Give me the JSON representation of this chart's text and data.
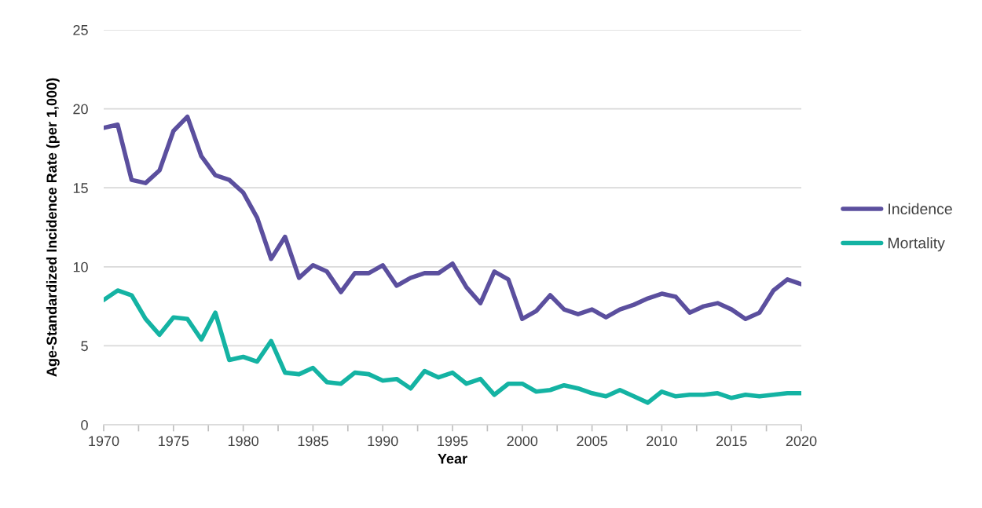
{
  "chart_data": {
    "type": "line",
    "xlabel": "Year",
    "ylabel": "Age-Standardized Incidence Rate (per 1,000)",
    "x": [
      1970,
      1971,
      1972,
      1973,
      1974,
      1975,
      1976,
      1977,
      1978,
      1979,
      1980,
      1981,
      1982,
      1983,
      1984,
      1985,
      1986,
      1987,
      1988,
      1989,
      1990,
      1991,
      1992,
      1993,
      1994,
      1995,
      1996,
      1997,
      1998,
      1999,
      2000,
      2001,
      2002,
      2003,
      2004,
      2005,
      2006,
      2007,
      2008,
      2009,
      2010,
      2011,
      2012,
      2013,
      2014,
      2015,
      2016,
      2017,
      2018,
      2019,
      2020
    ],
    "series": [
      {
        "name": "Incidence",
        "color": "#5b4f9e",
        "values": [
          18.8,
          19.0,
          15.5,
          15.3,
          16.1,
          18.6,
          19.5,
          17.0,
          15.8,
          15.5,
          14.7,
          13.1,
          10.5,
          11.9,
          9.3,
          10.1,
          9.7,
          8.4,
          9.6,
          9.6,
          10.1,
          8.8,
          9.3,
          9.6,
          9.6,
          10.2,
          8.7,
          7.7,
          9.7,
          9.2,
          6.7,
          7.2,
          8.2,
          7.3,
          7.0,
          7.3,
          6.8,
          7.3,
          7.6,
          8.0,
          8.3,
          8.1,
          7.1,
          7.5,
          7.7,
          7.3,
          6.7,
          7.1,
          8.5,
          9.2,
          8.9
        ]
      },
      {
        "name": "Mortality",
        "color": "#14b3a3",
        "values": [
          7.9,
          8.5,
          8.2,
          6.7,
          5.7,
          6.8,
          6.7,
          5.4,
          7.1,
          4.1,
          4.3,
          4.0,
          5.3,
          3.3,
          3.2,
          3.6,
          2.7,
          2.6,
          3.3,
          3.2,
          2.8,
          2.9,
          2.3,
          3.4,
          3.0,
          3.3,
          2.6,
          2.9,
          1.9,
          2.6,
          2.6,
          2.1,
          2.2,
          2.5,
          2.3,
          2.0,
          1.8,
          2.2,
          1.8,
          1.4,
          2.1,
          1.8,
          1.9,
          1.9,
          2.0,
          1.7,
          1.9,
          1.8,
          1.9,
          2.0,
          2.0
        ]
      }
    ],
    "xlim": [
      1970,
      2020
    ],
    "xticks": [
      1970,
      {
        "value": 1972.5,
        "label": null
      },
      1975,
      {
        "value": 1977.5,
        "label": null
      },
      1980,
      {
        "value": 1982.5,
        "label": null
      },
      1985,
      {
        "value": 1987.5,
        "label": null
      },
      1990,
      {
        "value": 1992.5,
        "label": null
      },
      1995,
      {
        "value": 1997.5,
        "label": null
      },
      2000,
      {
        "value": 2002.5,
        "label": null
      },
      2005,
      {
        "value": 2007.5,
        "label": null
      },
      2010,
      {
        "value": 2012.5,
        "label": null
      },
      2015,
      {
        "value": 2017.5,
        "label": null
      },
      2020
    ],
    "ylim": [
      0,
      25
    ],
    "yticks": [
      0,
      5,
      10,
      15,
      20,
      25
    ],
    "grid": "y",
    "legend": "right",
    "marker": "none",
    "line_style": "solid"
  }
}
